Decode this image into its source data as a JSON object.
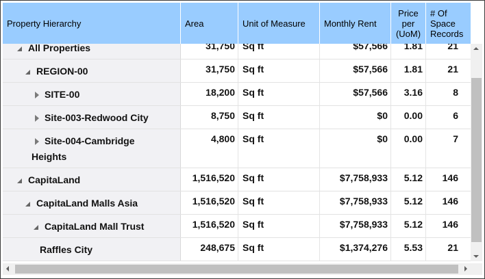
{
  "header": {
    "col_hierarchy": "Property Hierarchy",
    "col_area": "Area",
    "col_unit": "Unit of Measure",
    "col_rent": "Monthly Rent",
    "col_price": [
      "Price",
      "per",
      "(UoM)"
    ],
    "col_records": [
      "# Of",
      "Space",
      "Records"
    ]
  },
  "rows": [
    {
      "label": "All Properties",
      "expand": "expanded",
      "label2": "",
      "area": "31,750",
      "unit": "Sq ft",
      "rent": "$57,566",
      "price": "1.81",
      "records": "21"
    },
    {
      "label": "REGION-00",
      "expand": "expanded",
      "label2": "",
      "area": "31,750",
      "unit": "Sq ft",
      "rent": "$57,566",
      "price": "1.81",
      "records": "21"
    },
    {
      "label": "SITE-00",
      "expand": "collapsed",
      "label2": "",
      "area": "18,200",
      "unit": "Sq ft",
      "rent": "$57,566",
      "price": "3.16",
      "records": "8"
    },
    {
      "label": "Site-003-Redwood City",
      "expand": "collapsed",
      "label2": "",
      "area": "8,750",
      "unit": "Sq ft",
      "rent": "$0",
      "price": "0.00",
      "records": "6"
    },
    {
      "label": "Site-004-Cambridge",
      "expand": "collapsed",
      "label2": "Heights",
      "area": "4,800",
      "unit": "Sq ft",
      "rent": "$0",
      "price": "0.00",
      "records": "7"
    },
    {
      "label": "CapitaLand",
      "expand": "expanded",
      "label2": "",
      "area": "1,516,520",
      "unit": "Sq ft",
      "rent": "$7,758,933",
      "price": "5.12",
      "records": "146"
    },
    {
      "label": "CapitaLand Malls Asia",
      "expand": "expanded",
      "label2": "",
      "area": "1,516,520",
      "unit": "Sq ft",
      "rent": "$7,758,933",
      "price": "5.12",
      "records": "146"
    },
    {
      "label": "CapitaLand Mall Trust",
      "expand": "expanded",
      "label2": "",
      "area": "1,516,520",
      "unit": "Sq ft",
      "rent": "$7,758,933",
      "price": "5.12",
      "records": "146"
    },
    {
      "label": "Raffles City",
      "expand": "none",
      "label2": "",
      "area": "248,675",
      "unit": "Sq ft",
      "rent": "$1,374,276",
      "price": "5.53",
      "records": "21"
    }
  ]
}
